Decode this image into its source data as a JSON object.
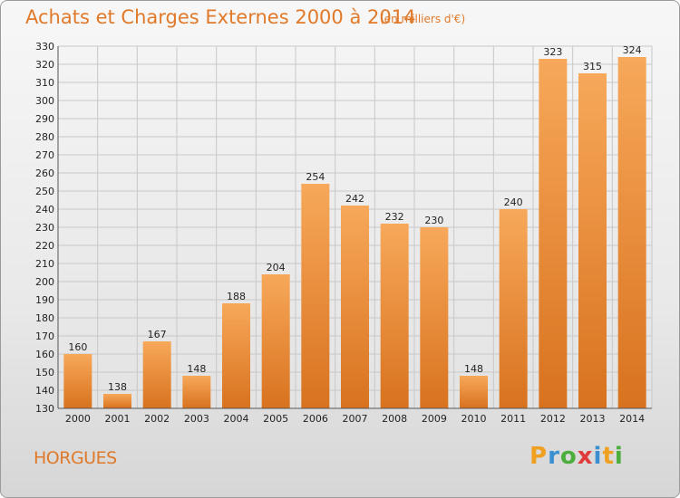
{
  "title": "Achats et Charges Externes 2000 à 2014",
  "subtitle": "(en milliers d'€)",
  "commune": "HORGUES",
  "logo": {
    "letters": [
      "P",
      "r",
      "o",
      "x",
      "i",
      "t",
      "i"
    ],
    "colors": [
      "#f0a020",
      "#3a8fd0",
      "#4cae3c",
      "#e03a3a",
      "#3a8fd0",
      "#f0a020",
      "#4cae3c"
    ]
  },
  "colors": {
    "bar_top": "#f7a85a",
    "bar_bottom": "#d8721e",
    "grid": "#c8c8c8",
    "accent": "#e07a2a"
  },
  "chart_data": {
    "type": "bar",
    "title": "Achats et Charges Externes 2000 à 2014",
    "categories": [
      "2000",
      "2001",
      "2002",
      "2003",
      "2004",
      "2005",
      "2006",
      "2007",
      "2008",
      "2009",
      "2010",
      "2011",
      "2012",
      "2013",
      "2014"
    ],
    "values": [
      160,
      138,
      167,
      148,
      188,
      204,
      254,
      242,
      232,
      230,
      148,
      240,
      323,
      315,
      324
    ],
    "ylim": [
      130,
      330
    ],
    "ytick_step": 10,
    "grid": true,
    "data_labels": true
  }
}
